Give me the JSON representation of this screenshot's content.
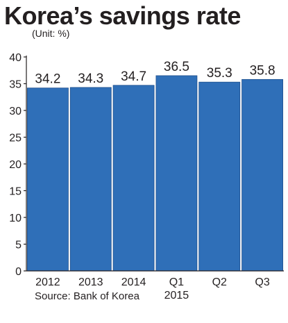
{
  "title": "Korea’s savings rate",
  "subtitle": "(Unit: %)",
  "source": "Source: Bank of Korea",
  "colors": {
    "bar": "#2f6fb8",
    "bar_edge": "#1e4f8c",
    "axis": "#231f20",
    "text": "#231f20"
  },
  "chart_data": {
    "type": "bar",
    "title": "Korea’s savings rate",
    "subtitle": "(Unit: %)",
    "xlabel": "",
    "ylabel": "",
    "ylim": [
      0,
      40
    ],
    "yticks": [
      "0",
      "5",
      "10",
      "15",
      "20",
      "25",
      "30",
      "35",
      "40"
    ],
    "grid": false,
    "legend": "none",
    "categories": [
      "2012",
      "2013",
      "2014",
      "Q1",
      "Q2",
      "Q3"
    ],
    "group_label": "2015",
    "values": [
      34.2,
      34.3,
      34.7,
      36.5,
      35.3,
      35.8
    ],
    "data_labels": [
      "34.2",
      "34.3",
      "34.7",
      "36.5",
      "35.3",
      "35.8"
    ]
  }
}
